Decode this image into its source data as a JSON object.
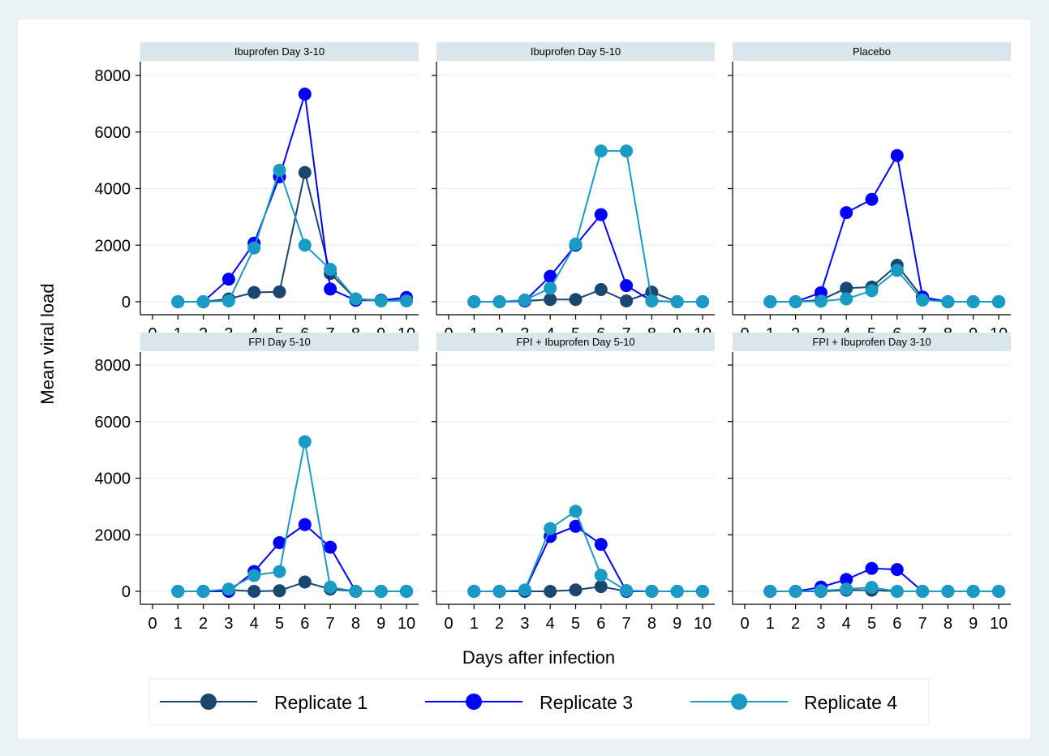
{
  "chart_data": {
    "type": "line",
    "xlabel": "Days after infection",
    "ylabel": "Mean viral load",
    "xlim": [
      0,
      10
    ],
    "ylim": [
      0,
      8000
    ],
    "x_ticks": [
      "0",
      "1",
      "2",
      "3",
      "4",
      "5",
      "6",
      "7",
      "8",
      "9",
      "10"
    ],
    "y_ticks": [
      "0",
      "2000",
      "4000",
      "6000",
      "8000"
    ],
    "grid": true,
    "legend_position": "bottom",
    "legend": [
      "Replicate 1",
      "Replicate 3",
      "Replicate 4"
    ],
    "colors": {
      "Replicate 1": "#1a476f",
      "Replicate 3": "#0000ff",
      "Replicate 4": "#1a9bc4",
      "plot_background": "#eaf2f3",
      "panel_background": "#ffffff",
      "strip_background": "#d9e6eb",
      "grid": "#eaf2f3"
    },
    "x": [
      1,
      2,
      3,
      4,
      5,
      6,
      7,
      8,
      9,
      10
    ],
    "panels": [
      {
        "title": "Ibuprofen Day 3-10",
        "series": [
          {
            "name": "Replicate 1",
            "values": [
              0,
              0,
              100,
              330,
              350,
              4570,
              1000,
              100,
              50,
              50
            ]
          },
          {
            "name": "Replicate 3",
            "values": [
              0,
              0,
              800,
              2070,
              4420,
              7340,
              450,
              50,
              50,
              150
            ]
          },
          {
            "name": "Replicate 4",
            "values": [
              0,
              0,
              30,
              1900,
              4650,
              2000,
              1150,
              100,
              30,
              30
            ]
          }
        ]
      },
      {
        "title": "Ibuprofen Day 5-10",
        "series": [
          {
            "name": "Replicate 1",
            "values": [
              0,
              0,
              30,
              80,
              80,
              430,
              30,
              340,
              0,
              0
            ]
          },
          {
            "name": "Replicate 3",
            "values": [
              0,
              0,
              30,
              900,
              2000,
              3080,
              570,
              30,
              0,
              0
            ]
          },
          {
            "name": "Replicate 4",
            "values": [
              0,
              0,
              60,
              480,
              2040,
              5330,
              5330,
              30,
              0,
              0
            ]
          }
        ]
      },
      {
        "title": "Placebo",
        "series": [
          {
            "name": "Replicate 1",
            "values": [
              0,
              0,
              60,
              480,
              520,
              1290,
              150,
              0,
              0,
              0
            ]
          },
          {
            "name": "Replicate 3",
            "values": [
              0,
              0,
              320,
              3150,
              3620,
              5170,
              170,
              0,
              0,
              0
            ]
          },
          {
            "name": "Replicate 4",
            "values": [
              0,
              0,
              20,
              100,
              390,
              1110,
              60,
              0,
              0,
              0
            ]
          }
        ]
      },
      {
        "title": "FPI Day 5-10",
        "series": [
          {
            "name": "Replicate 1",
            "values": [
              0,
              0,
              50,
              0,
              20,
              330,
              80,
              0,
              0,
              0
            ]
          },
          {
            "name": "Replicate 3",
            "values": [
              0,
              0,
              0,
              700,
              1720,
              2360,
              1560,
              0,
              0,
              0
            ]
          },
          {
            "name": "Replicate 4",
            "values": [
              0,
              0,
              80,
              560,
              700,
              5290,
              150,
              0,
              0,
              0
            ]
          }
        ]
      },
      {
        "title": "FPI + Ibuprofen Day 5-10",
        "series": [
          {
            "name": "Replicate 1",
            "values": [
              0,
              0,
              0,
              0,
              50,
              170,
              0,
              0,
              0,
              0
            ]
          },
          {
            "name": "Replicate 3",
            "values": [
              0,
              0,
              30,
              1940,
              2300,
              1660,
              0,
              0,
              0,
              0
            ]
          },
          {
            "name": "Replicate 4",
            "values": [
              0,
              0,
              50,
              2220,
              2830,
              570,
              30,
              0,
              0,
              0
            ]
          }
        ]
      },
      {
        "title": "FPI + Ibuprofen Day 3-10",
        "series": [
          {
            "name": "Replicate 1",
            "values": [
              0,
              0,
              0,
              40,
              40,
              0,
              0,
              0,
              0,
              0
            ]
          },
          {
            "name": "Replicate 3",
            "values": [
              0,
              0,
              150,
              420,
              810,
              770,
              0,
              0,
              0,
              0
            ]
          },
          {
            "name": "Replicate 4",
            "values": [
              0,
              0,
              20,
              80,
              140,
              0,
              0,
              0,
              0,
              0
            ]
          }
        ]
      }
    ]
  }
}
